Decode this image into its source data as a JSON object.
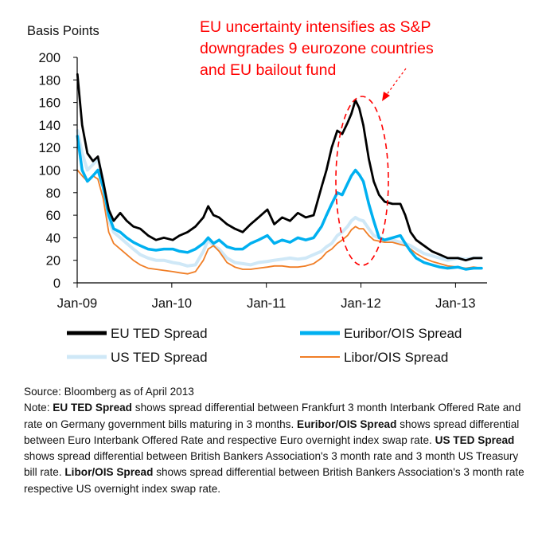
{
  "chart_data": {
    "type": "line",
    "ylabel": "Basis Points",
    "ylim": [
      0,
      200
    ],
    "yticks": [
      0,
      20,
      40,
      60,
      80,
      100,
      120,
      140,
      160,
      180,
      200
    ],
    "xlim": [
      "2009-01",
      "2013-05"
    ],
    "xticks": [
      {
        "label": "Jan-09",
        "value": "2009-01"
      },
      {
        "label": "Jan-10",
        "value": "2010-01"
      },
      {
        "label": "Jan-11",
        "value": "2011-01"
      },
      {
        "label": "Jan-12",
        "value": "2012-01"
      },
      {
        "label": "Jan-13",
        "value": "2013-01"
      }
    ],
    "annotation": {
      "lines": [
        "EU uncertainty intensifies as S&P",
        "downgrades 9 eurozone countries",
        "and EU bailout fund"
      ],
      "color": "#ff0000"
    },
    "series": [
      {
        "name": "EU TED Spread",
        "color": "#000000",
        "points": [
          [
            "2009-01-02",
            185
          ],
          [
            "2009-01-20",
            140
          ],
          [
            "2009-02-10",
            115
          ],
          [
            "2009-03-01",
            108
          ],
          [
            "2009-03-20",
            112
          ],
          [
            "2009-04-10",
            90
          ],
          [
            "2009-05-01",
            65
          ],
          [
            "2009-05-20",
            55
          ],
          [
            "2009-06-15",
            62
          ],
          [
            "2009-07-10",
            55
          ],
          [
            "2009-08-05",
            50
          ],
          [
            "2009-09-01",
            48
          ],
          [
            "2009-10-01",
            42
          ],
          [
            "2009-11-01",
            38
          ],
          [
            "2009-12-01",
            40
          ],
          [
            "2010-01-05",
            38
          ],
          [
            "2010-02-01",
            42
          ],
          [
            "2010-03-01",
            45
          ],
          [
            "2010-04-01",
            50
          ],
          [
            "2010-05-01",
            58
          ],
          [
            "2010-05-20",
            68
          ],
          [
            "2010-06-10",
            60
          ],
          [
            "2010-07-01",
            58
          ],
          [
            "2010-08-01",
            52
          ],
          [
            "2010-09-01",
            48
          ],
          [
            "2010-10-01",
            45
          ],
          [
            "2010-11-01",
            52
          ],
          [
            "2010-12-01",
            58
          ],
          [
            "2011-01-05",
            65
          ],
          [
            "2011-02-01",
            52
          ],
          [
            "2011-03-01",
            58
          ],
          [
            "2011-04-01",
            55
          ],
          [
            "2011-05-01",
            62
          ],
          [
            "2011-06-01",
            58
          ],
          [
            "2011-07-01",
            60
          ],
          [
            "2011-08-01",
            85
          ],
          [
            "2011-08-20",
            100
          ],
          [
            "2011-09-10",
            120
          ],
          [
            "2011-10-01",
            135
          ],
          [
            "2011-10-20",
            132
          ],
          [
            "2011-11-10",
            142
          ],
          [
            "2011-11-25",
            150
          ],
          [
            "2011-12-10",
            162
          ],
          [
            "2011-12-25",
            155
          ],
          [
            "2012-01-10",
            140
          ],
          [
            "2012-02-01",
            110
          ],
          [
            "2012-02-20",
            90
          ],
          [
            "2012-03-10",
            78
          ],
          [
            "2012-04-01",
            72
          ],
          [
            "2012-05-01",
            70
          ],
          [
            "2012-06-01",
            70
          ],
          [
            "2012-06-20",
            60
          ],
          [
            "2012-07-10",
            45
          ],
          [
            "2012-08-01",
            38
          ],
          [
            "2012-09-01",
            33
          ],
          [
            "2012-10-01",
            28
          ],
          [
            "2012-11-01",
            25
          ],
          [
            "2012-12-01",
            22
          ],
          [
            "2013-01-10",
            22
          ],
          [
            "2013-02-10",
            20
          ],
          [
            "2013-03-10",
            22
          ],
          [
            "2013-04-10",
            22
          ]
        ]
      },
      {
        "name": "Euribor/OIS Spread",
        "color": "#00b0f0",
        "points": [
          [
            "2009-01-02",
            130
          ],
          [
            "2009-01-20",
            100
          ],
          [
            "2009-02-10",
            90
          ],
          [
            "2009-03-01",
            95
          ],
          [
            "2009-03-20",
            100
          ],
          [
            "2009-04-10",
            85
          ],
          [
            "2009-05-01",
            60
          ],
          [
            "2009-05-20",
            48
          ],
          [
            "2009-06-15",
            45
          ],
          [
            "2009-07-10",
            40
          ],
          [
            "2009-08-05",
            36
          ],
          [
            "2009-09-01",
            33
          ],
          [
            "2009-10-01",
            30
          ],
          [
            "2009-11-01",
            29
          ],
          [
            "2009-12-01",
            30
          ],
          [
            "2010-01-05",
            30
          ],
          [
            "2010-02-01",
            28
          ],
          [
            "2010-03-01",
            27
          ],
          [
            "2010-04-01",
            30
          ],
          [
            "2010-05-01",
            35
          ],
          [
            "2010-05-20",
            40
          ],
          [
            "2010-06-10",
            35
          ],
          [
            "2010-07-01",
            38
          ],
          [
            "2010-08-01",
            32
          ],
          [
            "2010-09-01",
            30
          ],
          [
            "2010-10-01",
            30
          ],
          [
            "2010-11-01",
            35
          ],
          [
            "2010-12-01",
            38
          ],
          [
            "2011-01-05",
            42
          ],
          [
            "2011-02-01",
            35
          ],
          [
            "2011-03-01",
            38
          ],
          [
            "2011-04-01",
            36
          ],
          [
            "2011-05-01",
            40
          ],
          [
            "2011-06-01",
            38
          ],
          [
            "2011-07-01",
            40
          ],
          [
            "2011-08-01",
            50
          ],
          [
            "2011-08-20",
            60
          ],
          [
            "2011-09-10",
            70
          ],
          [
            "2011-10-01",
            80
          ],
          [
            "2011-10-20",
            78
          ],
          [
            "2011-11-10",
            88
          ],
          [
            "2011-11-25",
            95
          ],
          [
            "2011-12-10",
            100
          ],
          [
            "2011-12-25",
            96
          ],
          [
            "2012-01-10",
            90
          ],
          [
            "2012-02-01",
            70
          ],
          [
            "2012-02-20",
            55
          ],
          [
            "2012-03-10",
            40
          ],
          [
            "2012-04-01",
            38
          ],
          [
            "2012-05-01",
            40
          ],
          [
            "2012-06-01",
            42
          ],
          [
            "2012-06-20",
            35
          ],
          [
            "2012-07-10",
            28
          ],
          [
            "2012-08-01",
            22
          ],
          [
            "2012-09-01",
            18
          ],
          [
            "2012-10-01",
            16
          ],
          [
            "2012-11-01",
            14
          ],
          [
            "2012-12-01",
            13
          ],
          [
            "2013-01-10",
            14
          ],
          [
            "2013-02-10",
            12
          ],
          [
            "2013-03-10",
            13
          ],
          [
            "2013-04-10",
            13
          ]
        ]
      },
      {
        "name": "US TED Spread",
        "color": "#cfe8f7",
        "points": [
          [
            "2009-01-02",
            135
          ],
          [
            "2009-01-20",
            115
          ],
          [
            "2009-02-10",
            100
          ],
          [
            "2009-03-01",
            105
          ],
          [
            "2009-03-20",
            110
          ],
          [
            "2009-04-10",
            90
          ],
          [
            "2009-05-01",
            55
          ],
          [
            "2009-05-20",
            45
          ],
          [
            "2009-06-15",
            40
          ],
          [
            "2009-07-10",
            35
          ],
          [
            "2009-08-05",
            30
          ],
          [
            "2009-09-01",
            25
          ],
          [
            "2009-10-01",
            22
          ],
          [
            "2009-11-01",
            20
          ],
          [
            "2009-12-01",
            20
          ],
          [
            "2010-01-05",
            18
          ],
          [
            "2010-02-01",
            17
          ],
          [
            "2010-03-01",
            15
          ],
          [
            "2010-04-01",
            16
          ],
          [
            "2010-05-01",
            28
          ],
          [
            "2010-05-20",
            38
          ],
          [
            "2010-06-10",
            33
          ],
          [
            "2010-07-01",
            30
          ],
          [
            "2010-08-01",
            22
          ],
          [
            "2010-09-01",
            18
          ],
          [
            "2010-10-01",
            17
          ],
          [
            "2010-11-01",
            16
          ],
          [
            "2010-12-01",
            18
          ],
          [
            "2011-01-05",
            19
          ],
          [
            "2011-02-01",
            20
          ],
          [
            "2011-03-01",
            21
          ],
          [
            "2011-04-01",
            22
          ],
          [
            "2011-05-01",
            21
          ],
          [
            "2011-06-01",
            22
          ],
          [
            "2011-07-01",
            25
          ],
          [
            "2011-08-01",
            28
          ],
          [
            "2011-08-20",
            32
          ],
          [
            "2011-09-10",
            35
          ],
          [
            "2011-10-01",
            42
          ],
          [
            "2011-10-20",
            45
          ],
          [
            "2011-11-10",
            50
          ],
          [
            "2011-11-25",
            55
          ],
          [
            "2011-12-10",
            58
          ],
          [
            "2011-12-25",
            56
          ],
          [
            "2012-01-10",
            55
          ],
          [
            "2012-02-01",
            48
          ],
          [
            "2012-02-20",
            42
          ],
          [
            "2012-03-10",
            40
          ],
          [
            "2012-04-01",
            38
          ],
          [
            "2012-05-01",
            38
          ],
          [
            "2012-06-01",
            36
          ],
          [
            "2012-06-20",
            35
          ],
          [
            "2012-07-10",
            33
          ],
          [
            "2012-08-01",
            30
          ],
          [
            "2012-09-01",
            26
          ],
          [
            "2012-10-01",
            24
          ],
          [
            "2012-11-01",
            22
          ],
          [
            "2012-12-01",
            20
          ],
          [
            "2013-01-10",
            22
          ],
          [
            "2013-02-10",
            21
          ],
          [
            "2013-03-10",
            22
          ],
          [
            "2013-04-10",
            22
          ]
        ]
      },
      {
        "name": "Libor/OIS Spread",
        "color": "#f07e26",
        "points": [
          [
            "2009-01-02",
            100
          ],
          [
            "2009-01-20",
            95
          ],
          [
            "2009-02-10",
            90
          ],
          [
            "2009-03-01",
            95
          ],
          [
            "2009-03-20",
            92
          ],
          [
            "2009-04-10",
            75
          ],
          [
            "2009-05-01",
            45
          ],
          [
            "2009-05-20",
            35
          ],
          [
            "2009-06-15",
            30
          ],
          [
            "2009-07-10",
            25
          ],
          [
            "2009-08-05",
            20
          ],
          [
            "2009-09-01",
            16
          ],
          [
            "2009-10-01",
            13
          ],
          [
            "2009-11-01",
            12
          ],
          [
            "2009-12-01",
            11
          ],
          [
            "2010-01-05",
            10
          ],
          [
            "2010-02-01",
            9
          ],
          [
            "2010-03-01",
            8
          ],
          [
            "2010-04-01",
            10
          ],
          [
            "2010-05-01",
            20
          ],
          [
            "2010-05-20",
            30
          ],
          [
            "2010-06-10",
            33
          ],
          [
            "2010-07-01",
            28
          ],
          [
            "2010-08-01",
            18
          ],
          [
            "2010-09-01",
            14
          ],
          [
            "2010-10-01",
            12
          ],
          [
            "2010-11-01",
            12
          ],
          [
            "2010-12-01",
            13
          ],
          [
            "2011-01-05",
            14
          ],
          [
            "2011-02-01",
            15
          ],
          [
            "2011-03-01",
            15
          ],
          [
            "2011-04-01",
            14
          ],
          [
            "2011-05-01",
            14
          ],
          [
            "2011-06-01",
            15
          ],
          [
            "2011-07-01",
            17
          ],
          [
            "2011-08-01",
            22
          ],
          [
            "2011-08-20",
            27
          ],
          [
            "2011-09-10",
            30
          ],
          [
            "2011-10-01",
            35
          ],
          [
            "2011-10-20",
            38
          ],
          [
            "2011-11-10",
            42
          ],
          [
            "2011-11-25",
            47
          ],
          [
            "2011-12-10",
            50
          ],
          [
            "2011-12-25",
            48
          ],
          [
            "2012-01-10",
            48
          ],
          [
            "2012-02-01",
            42
          ],
          [
            "2012-02-20",
            38
          ],
          [
            "2012-03-10",
            37
          ],
          [
            "2012-04-01",
            36
          ],
          [
            "2012-05-01",
            36
          ],
          [
            "2012-06-01",
            34
          ],
          [
            "2012-06-20",
            33
          ],
          [
            "2012-07-10",
            30
          ],
          [
            "2012-08-01",
            26
          ],
          [
            "2012-09-01",
            22
          ],
          [
            "2012-10-01",
            19
          ],
          [
            "2012-11-01",
            17
          ],
          [
            "2012-12-01",
            15
          ],
          [
            "2013-01-10",
            14
          ],
          [
            "2013-02-10",
            13
          ],
          [
            "2013-03-10",
            14
          ],
          [
            "2013-04-10",
            13
          ]
        ]
      }
    ]
  },
  "notes": {
    "source": "Source: Bloomberg as of April 2013",
    "note_prefix": "Note: ",
    "eu_ted_bold": "EU TED Spread",
    "eu_ted_text": " shows spread differential between Frankfurt 3 month Interbank Offered Rate and rate on Germany government bills maturing in 3 months. ",
    "euribor_bold": "Euribor/OIS Spread",
    "euribor_text": " shows spread differential between Euro Interbank Offered Rate and respective Euro overnight index swap rate. ",
    "us_ted_bold": "US TED Spread",
    "us_ted_text": " shows spread differential between British Bankers Association's 3 month rate and 3 month US Treasury bill rate. ",
    "libor_bold": "Libor/OIS Spread",
    "libor_text": " shows spread differential between British Bankers Association's 3 month rate respective US overnight index swap rate."
  }
}
